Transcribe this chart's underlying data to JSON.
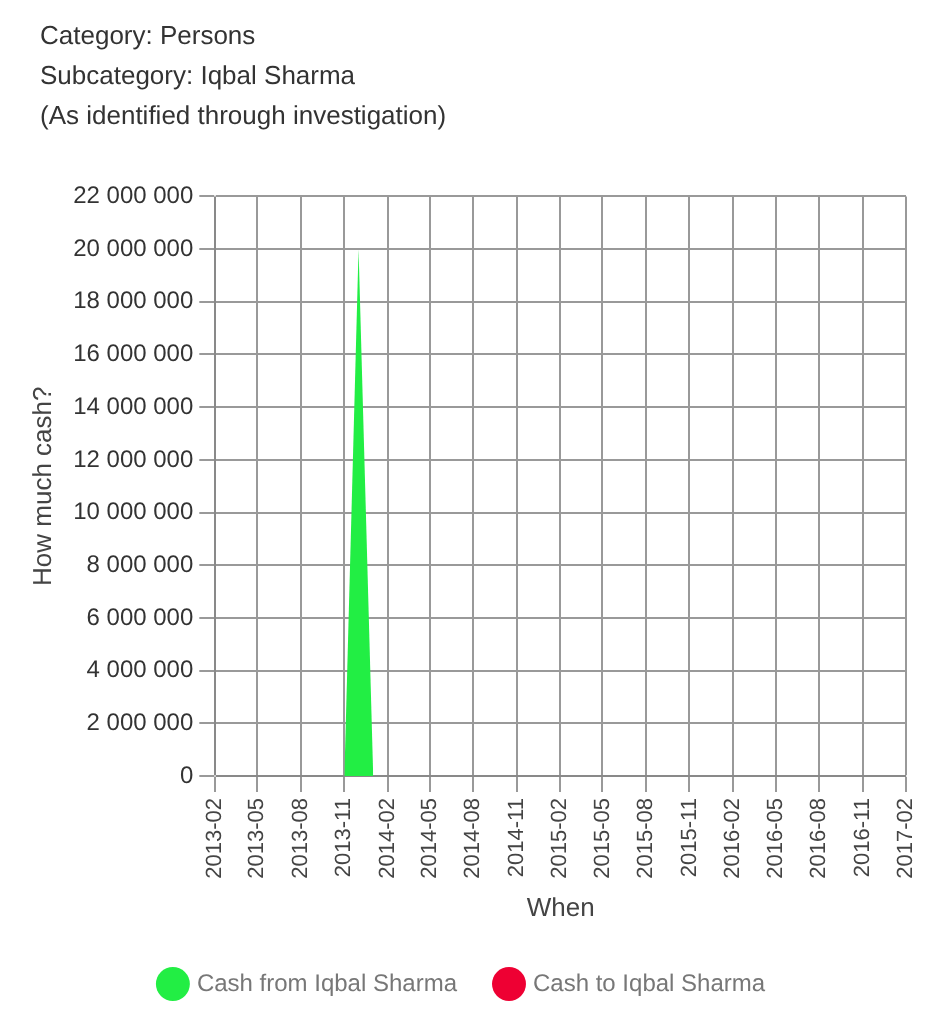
{
  "chart_data": {
    "type": "area",
    "title": "Category: Persons",
    "subtitle": "Subcategory: Iqbal Sharma",
    "annotations": [
      "(As identified through investigation)"
    ],
    "xlabel": "When",
    "ylabel": "How much cash?",
    "x": [
      "2013-11-01",
      "2013-12-01",
      "2014-01-01"
    ],
    "series": [
      {
        "name": "Cash from Iqbal Sharma",
        "color": "#22ee44",
        "values": [
          0,
          20000000,
          0
        ]
      },
      {
        "name": "Cash to Iqbal Sharma",
        "color": "#ee0033",
        "values": [
          null,
          null,
          null
        ]
      }
    ],
    "xlim": [
      "2013-02",
      "2017-02"
    ],
    "xticks": [
      "2013-02",
      "2013-05",
      "2013-08",
      "2013-11",
      "2014-02",
      "2014-05",
      "2014-08",
      "2014-11",
      "2015-02",
      "2015-05",
      "2015-08",
      "2015-11",
      "2016-02",
      "2016-05",
      "2016-08",
      "2016-11",
      "2017-02"
    ],
    "ylim": [
      0,
      22000000
    ],
    "yticks": [
      {
        "value": 0,
        "label": "0"
      },
      {
        "value": 2000000,
        "label": "2 000 000"
      },
      {
        "value": 4000000,
        "label": "4 000 000"
      },
      {
        "value": 6000000,
        "label": "6 000 000"
      },
      {
        "value": 8000000,
        "label": "8 000 000"
      },
      {
        "value": 10000000,
        "label": "10 000 000"
      },
      {
        "value": 12000000,
        "label": "12 000 000"
      },
      {
        "value": 14000000,
        "label": "14 000 000"
      },
      {
        "value": 16000000,
        "label": "16 000 000"
      },
      {
        "value": 18000000,
        "label": "18 000 000"
      },
      {
        "value": 20000000,
        "label": "20 000 000"
      },
      {
        "value": 22000000,
        "label": "22 000 000"
      }
    ],
    "grid": true,
    "legend": "bottom"
  }
}
